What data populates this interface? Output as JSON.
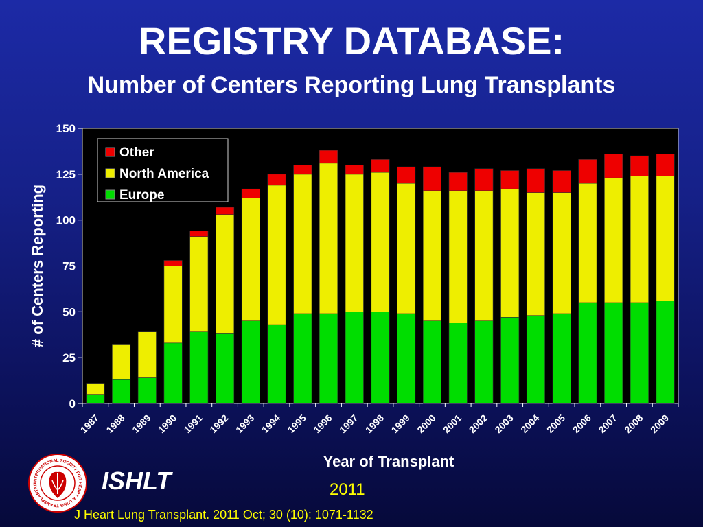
{
  "slide": {
    "title": "REGISTRY DATABASE:",
    "subtitle": "Number of Centers Reporting Lung Transplants"
  },
  "footer": {
    "org_name": "ISHLT",
    "logo_text": "INTERNATIONAL SOCIETY FOR HEART & LUNG TRANSPLANTATION",
    "year": "2011",
    "citation": "J Heart Lung Transplant. 2011 Oct; 30 (10): 1071-1132"
  },
  "chart_data": {
    "type": "bar",
    "stacked": true,
    "xlabel": "Year of Transplant",
    "ylabel": "# of Centers Reporting",
    "ylim": [
      0,
      150
    ],
    "yticks": [
      0,
      25,
      50,
      75,
      100,
      125,
      150
    ],
    "grid": false,
    "legend_position": "top-left",
    "categories": [
      "1987",
      "1988",
      "1989",
      "1990",
      "1991",
      "1992",
      "1993",
      "1994",
      "1995",
      "1996",
      "1997",
      "1998",
      "1999",
      "2000",
      "2001",
      "2002",
      "2003",
      "2004",
      "2005",
      "2006",
      "2007",
      "2008",
      "2009"
    ],
    "series": [
      {
        "name": "Europe",
        "color": "#00dd00",
        "values": [
          5,
          13,
          14,
          33,
          39,
          38,
          45,
          43,
          49,
          49,
          50,
          50,
          49,
          45,
          44,
          45,
          47,
          48,
          49,
          55,
          55,
          55,
          56
        ]
      },
      {
        "name": "North America",
        "color": "#eeee00",
        "values": [
          6,
          19,
          25,
          42,
          52,
          65,
          67,
          76,
          76,
          82,
          75,
          76,
          71,
          71,
          72,
          71,
          70,
          67,
          66,
          65,
          68,
          69,
          68
        ]
      },
      {
        "name": "Other",
        "color": "#ee0000",
        "values": [
          0,
          0,
          0,
          3,
          3,
          4,
          5,
          6,
          5,
          7,
          5,
          7,
          9,
          13,
          10,
          12,
          10,
          13,
          12,
          13,
          13,
          11,
          12
        ]
      }
    ],
    "legend_order": [
      "Other",
      "North America",
      "Europe"
    ]
  }
}
